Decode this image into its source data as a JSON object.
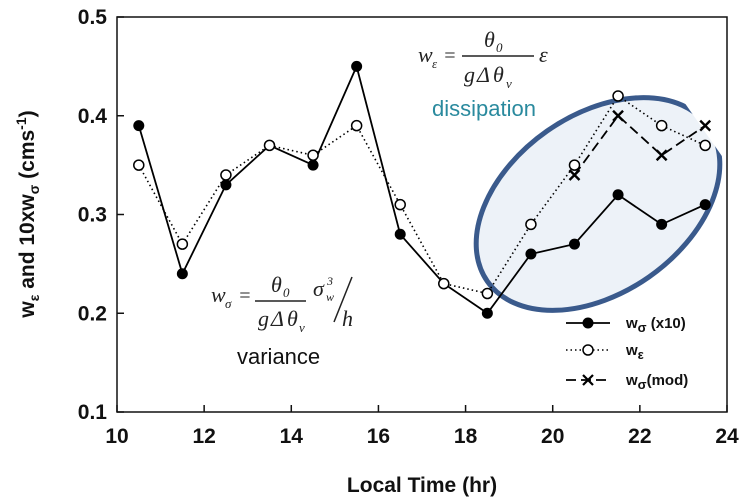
{
  "chart_data": {
    "type": "line",
    "title": "",
    "xlabel": "Local Time (hr)",
    "ylabel": "wε and 10xwσ (cms-1)",
    "xlim": [
      10,
      24
    ],
    "ylim": [
      0.1,
      0.5
    ],
    "xticks": [
      10,
      12,
      14,
      16,
      18,
      20,
      22,
      24
    ],
    "yticks": [
      0.1,
      0.2,
      0.3,
      0.4,
      0.5
    ],
    "xtick_labels": [
      "10",
      "12",
      "14",
      "16",
      "18",
      "20",
      "22",
      "24"
    ],
    "ytick_labels": [
      "0.1",
      "0.2",
      "0.3",
      "0.4",
      "0.5"
    ],
    "grid": false,
    "legend_position": "bottom-right",
    "series": [
      {
        "name": "wσ (x10)",
        "marker": "filled-circle",
        "line": "solid",
        "color": "#000000",
        "x": [
          10.5,
          11.5,
          12.5,
          13.5,
          14.5,
          15.5,
          16.5,
          17.5,
          18.5,
          19.5,
          20.5,
          21.5,
          22.5,
          23.5
        ],
        "y": [
          0.39,
          0.24,
          0.33,
          0.37,
          0.35,
          0.45,
          0.28,
          0.23,
          0.2,
          0.26,
          0.27,
          0.32,
          0.29,
          0.31
        ]
      },
      {
        "name": "wε",
        "marker": "open-circle",
        "line": "dotted",
        "color": "#000000",
        "x": [
          10.5,
          11.5,
          12.5,
          13.5,
          14.5,
          15.5,
          16.5,
          17.5,
          18.5,
          19.5,
          20.5,
          21.5,
          22.5,
          23.5
        ],
        "y": [
          0.35,
          0.27,
          0.34,
          0.37,
          0.36,
          0.39,
          0.31,
          0.23,
          0.22,
          0.29,
          0.35,
          0.42,
          0.39,
          0.37
        ]
      },
      {
        "name": "wσ(mod)",
        "marker": "x",
        "line": "dashed",
        "color": "#000000",
        "x": [
          20.5,
          21.5,
          22.5,
          23.5
        ],
        "y": [
          0.34,
          0.4,
          0.36,
          0.39
        ]
      }
    ],
    "annotations": {
      "dissipation_label": "dissipation",
      "variance_label": "variance",
      "dissipation_formula": "wε = θ0 / (gΔθv) ε",
      "variance_formula": "wσ = θ0 / (gΔθv) σw3 / h"
    },
    "highlight_color": "#3a5a8c"
  }
}
